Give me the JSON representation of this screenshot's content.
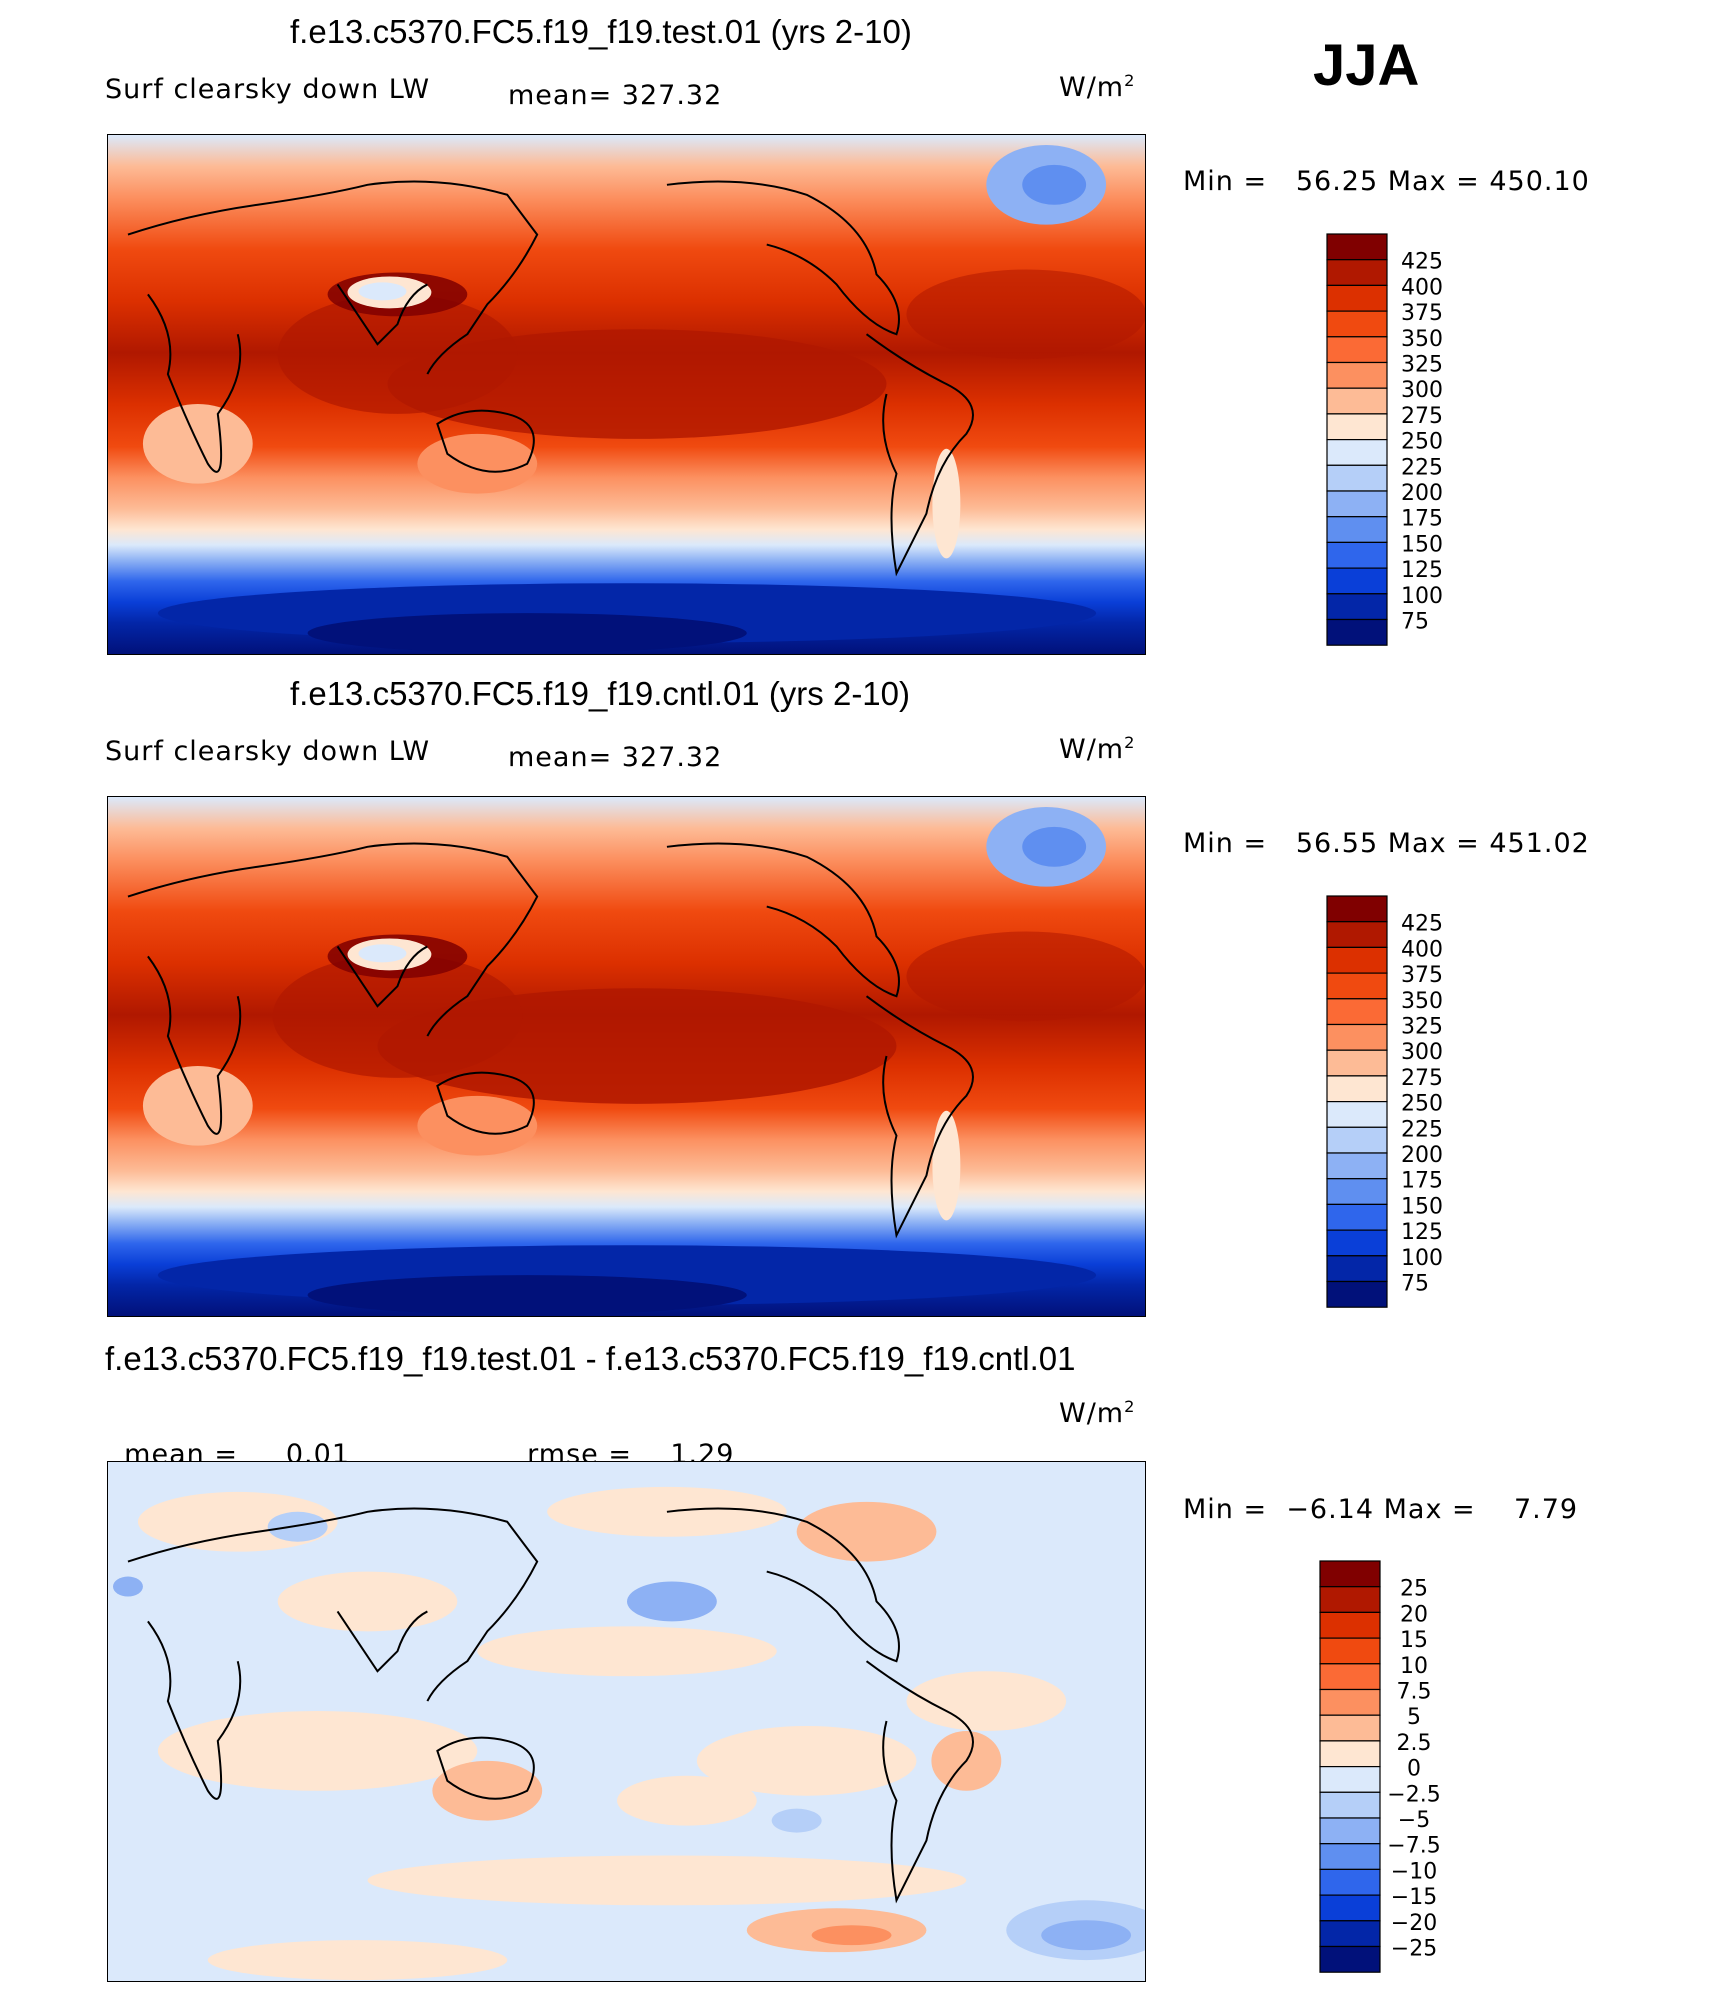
{
  "season": "JJA",
  "units": {
    "prefix": "W/m",
    "exp": "2"
  },
  "panels": [
    {
      "title": "f.e13.c5370.FC5.f19_f19.test.01 (yrs 2-10)",
      "left_label": "Surf clearsky down LW",
      "stat_label": "mean=",
      "stat_value": "327.32",
      "minmax": "Min =   56.25 Max = 450.10",
      "colorbar": {
        "labels": [
          "425",
          "400",
          "375",
          "350",
          "325",
          "300",
          "275",
          "250",
          "225",
          "200",
          "175",
          "150",
          "125",
          "100",
          "75"
        ],
        "colors": [
          "#800000",
          "#b01800",
          "#dc3000",
          "#f04a10",
          "#fb6a35",
          "#fc9060",
          "#fdbb96",
          "#fee6d2",
          "#dbe9fb",
          "#b5cff8",
          "#8db1f4",
          "#5f8ff0",
          "#2f66ec",
          "#0a3fd8",
          "#0326a8",
          "#01117a"
        ]
      }
    },
    {
      "title": "f.e13.c5370.FC5.f19_f19.cntl.01 (yrs 2-10)",
      "left_label": "Surf clearsky down LW",
      "stat_label": "mean=",
      "stat_value": "327.32",
      "minmax": "Min =   56.55 Max = 451.02",
      "colorbar": {
        "labels": [
          "425",
          "400",
          "375",
          "350",
          "325",
          "300",
          "275",
          "250",
          "225",
          "200",
          "175",
          "150",
          "125",
          "100",
          "75"
        ],
        "colors": [
          "#800000",
          "#b01800",
          "#dc3000",
          "#f04a10",
          "#fb6a35",
          "#fc9060",
          "#fdbb96",
          "#fee6d2",
          "#dbe9fb",
          "#b5cff8",
          "#8db1f4",
          "#5f8ff0",
          "#2f66ec",
          "#0a3fd8",
          "#0326a8",
          "#01117a"
        ]
      }
    },
    {
      "title": "f.e13.c5370.FC5.f19_f19.test.01 - f.e13.c5370.FC5.f19_f19.cntl.01",
      "left_label": "mean =",
      "left_value": "0.01",
      "stat_label": "rmse =",
      "stat_value": "1.29",
      "minmax": "Min =  −6.14 Max =    7.79",
      "colorbar": {
        "labels": [
          "25",
          "20",
          "15",
          "10",
          "7.5",
          "5",
          "2.5",
          "0",
          "−2.5",
          "−5",
          "−7.5",
          "−10",
          "−15",
          "−20",
          "−25"
        ],
        "colors": [
          "#800000",
          "#b01800",
          "#dc3000",
          "#f04a10",
          "#fb6a35",
          "#fc9060",
          "#fdbb96",
          "#fee6d2",
          "#dbe9fb",
          "#b5cff8",
          "#8db1f4",
          "#5f8ff0",
          "#2f66ec",
          "#0a3fd8",
          "#0326a8",
          "#01117a"
        ]
      }
    }
  ]
}
